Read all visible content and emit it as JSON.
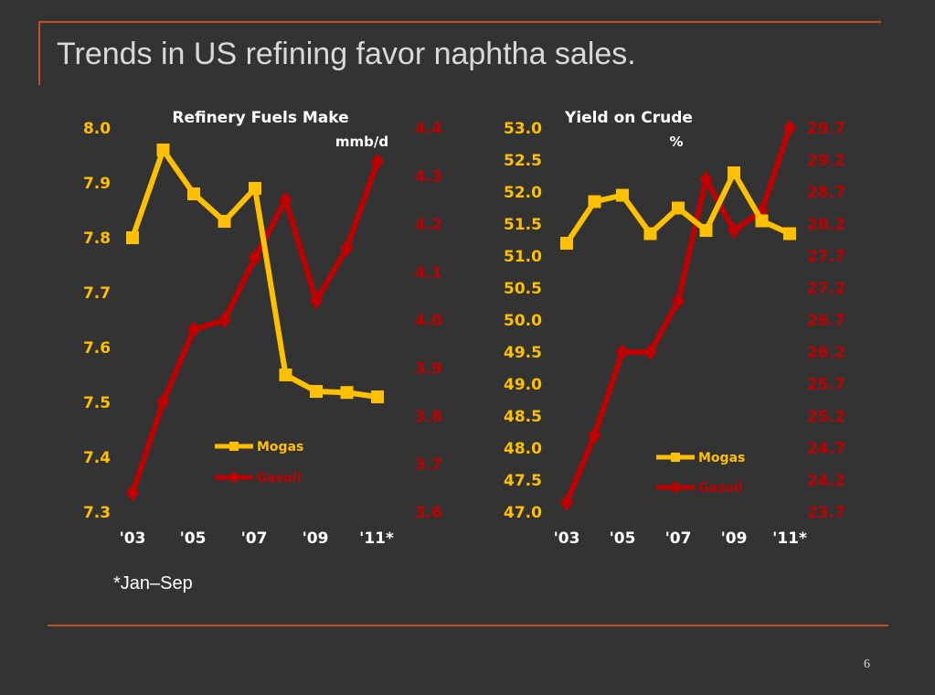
{
  "slide": {
    "title": "Trends in US refining favor naphtha sales.",
    "footnote": "*Jan–Sep",
    "page_number": "6"
  },
  "colors": {
    "mogas": "#ffc000",
    "gasoil": "#c00000",
    "rule": "#c0501f",
    "background": "#333333"
  },
  "chart_data": [
    {
      "type": "line",
      "title": "Refinery Fuels Make",
      "unit": "mmb/d",
      "x_ticks": [
        "'03",
        "'05",
        "'07",
        "'09",
        "'11*"
      ],
      "x": [
        2003,
        2004,
        2005,
        2006,
        2007,
        2008,
        2009,
        2010,
        2011
      ],
      "left_axis": {
        "ylim": [
          7.3,
          8.0
        ],
        "ticks": [
          "7.3",
          "7.4",
          "7.5",
          "7.6",
          "7.7",
          "7.8",
          "7.9",
          "8.0"
        ],
        "color": "#ffc000"
      },
      "right_axis": {
        "ylim": [
          3.6,
          4.4
        ],
        "ticks": [
          "3.6",
          "3.7",
          "3.8",
          "3.9",
          "4.0",
          "4.1",
          "4.2",
          "4.3",
          "4.4"
        ],
        "color": "#c00000"
      },
      "series": [
        {
          "name": "Mogas",
          "axis": "left",
          "marker": "square",
          "color": "#ffc000",
          "values": [
            7.8,
            7.96,
            7.88,
            7.83,
            7.89,
            7.55,
            7.52,
            7.518,
            7.51
          ]
        },
        {
          "name": "Gasoil",
          "axis": "right",
          "marker": "diamond",
          "color": "#c00000",
          "values": [
            3.64,
            3.83,
            3.98,
            4.0,
            4.13,
            4.25,
            4.04,
            4.15,
            4.33
          ]
        }
      ],
      "legend": "bottom-right"
    },
    {
      "type": "line",
      "title": "Yield on Crude",
      "unit": "%",
      "x_ticks": [
        "'03",
        "'05",
        "'07",
        "'09",
        "'11*"
      ],
      "x": [
        2003,
        2004,
        2005,
        2006,
        2007,
        2008,
        2009,
        2010,
        2011
      ],
      "left_axis": {
        "ylim": [
          47.0,
          53.0
        ],
        "ticks": [
          "47.0",
          "47.5",
          "48.0",
          "48.5",
          "49.0",
          "49.5",
          "50.0",
          "50.5",
          "51.0",
          "51.5",
          "52.0",
          "52.5",
          "53.0"
        ],
        "color": "#ffc000"
      },
      "right_axis": {
        "ylim": [
          23.7,
          29.7
        ],
        "ticks": [
          "23.7",
          "24.2",
          "24.7",
          "25.2",
          "25.7",
          "26.2",
          "26.7",
          "27.2",
          "27.7",
          "28.2",
          "28.7",
          "29.2",
          "29.7"
        ],
        "color": "#c00000"
      },
      "series": [
        {
          "name": "Mogas",
          "axis": "left",
          "marker": "square",
          "color": "#ffc000",
          "values": [
            51.2,
            51.85,
            51.95,
            51.35,
            51.75,
            51.4,
            52.3,
            51.55,
            51.35
          ]
        },
        {
          "name": "Gasoil",
          "axis": "right",
          "marker": "diamond",
          "color": "#c00000",
          "values": [
            23.85,
            24.9,
            26.2,
            26.2,
            27.0,
            28.9,
            28.1,
            28.4,
            29.7
          ]
        }
      ],
      "legend": "bottom-right"
    }
  ]
}
